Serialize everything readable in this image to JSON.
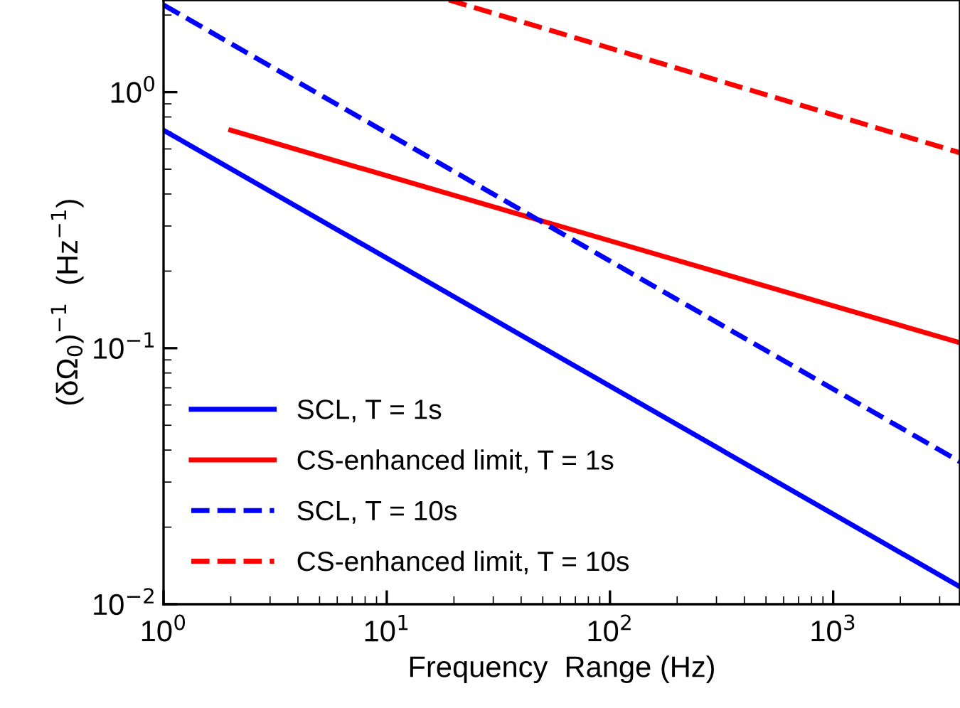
{
  "chart_data": {
    "type": "line",
    "xlabel": "Frequency  Range (Hz)",
    "ylabel": "(δΩ$_{0}$)$^{−1}$  (Hz$^{−1}$)",
    "log": "xy",
    "legend": "bottom left",
    "grid": false,
    "line_style": "solid",
    "marker": "none",
    "xlim": [
      1,
      3700
    ],
    "ylim": [
      0.01,
      2.29
    ],
    "xticks": [
      {
        "value": 1,
        "label": "10$^{0}$"
      },
      {
        "value": 10,
        "label": "10$^{1}$"
      },
      {
        "value": 100,
        "label": "10$^{2}$"
      },
      {
        "value": 1000,
        "label": "10$^{3}$"
      }
    ],
    "yticks": [
      {
        "value": 0.01,
        "label": "10$^{−2}$"
      },
      {
        "value": 0.1,
        "label": "10$^{−1}$"
      },
      {
        "value": 1,
        "label": "10$^{0}$"
      }
    ],
    "series": [
      {
        "name": "SCL, T = 1s",
        "color": "#0000ff",
        "x": [
          1,
          3700
        ],
        "values": [
          0.71,
          0.0117
        ]
      },
      {
        "name": "CS-enhanced limit, T = 1s",
        "color": "#ff0000",
        "x": [
          2,
          3700
        ],
        "values": [
          0.71,
          0.105
        ]
      },
      {
        "name": "SCL, T = 10s",
        "color": "#0000ff",
        "line_style": "dashed",
        "x": [
          1,
          3700
        ],
        "values": [
          2.19,
          0.036
        ]
      },
      {
        "name": "CS-enhanced limit, T = 10s",
        "color": "#ff0000",
        "line_style": "dashed",
        "x": [
          19,
          3700
        ],
        "values": [
          2.29,
          0.58
        ]
      }
    ]
  }
}
